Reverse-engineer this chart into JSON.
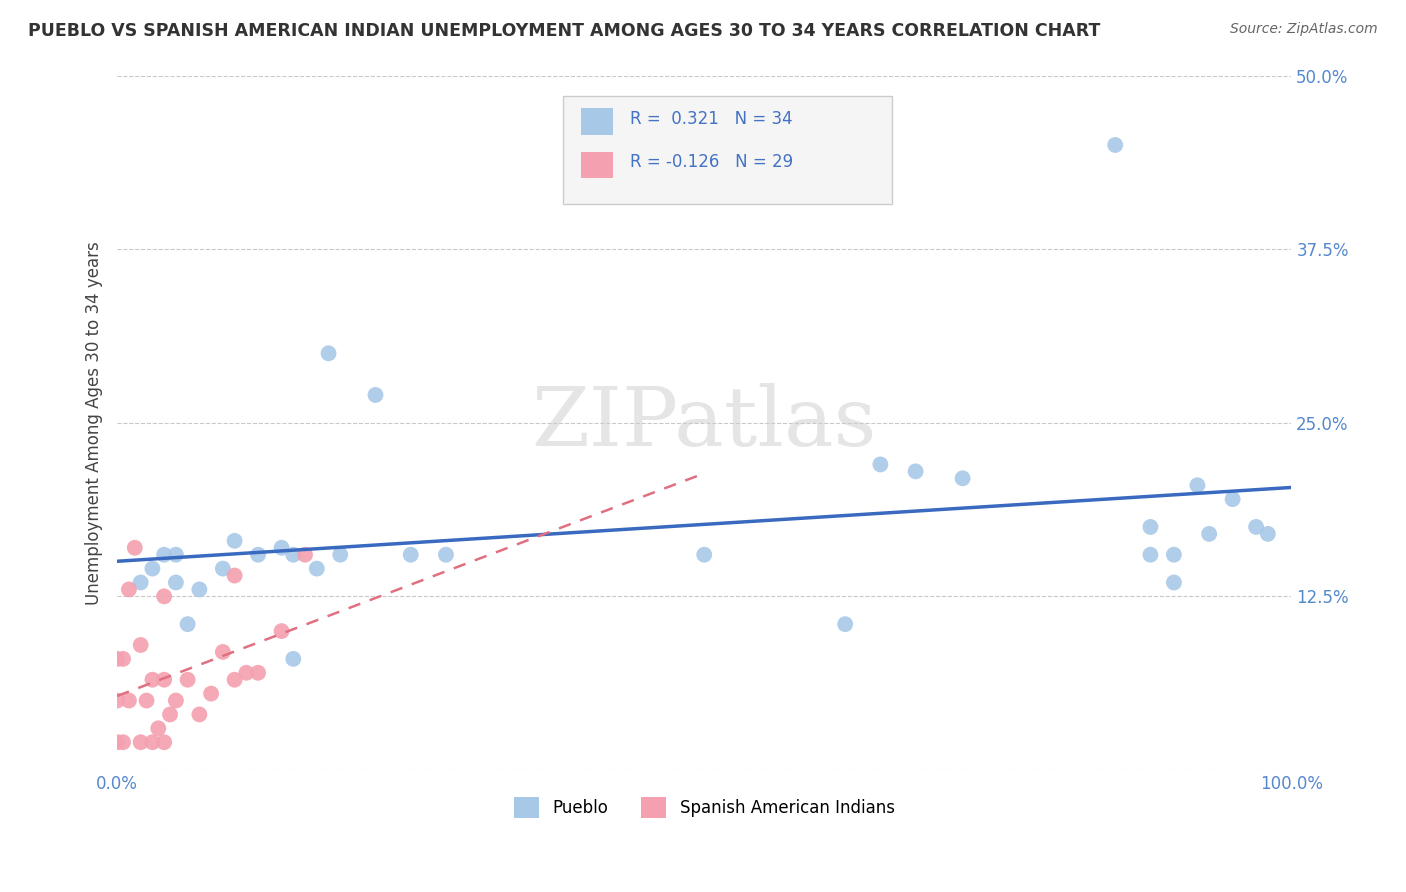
{
  "title": "PUEBLO VS SPANISH AMERICAN INDIAN UNEMPLOYMENT AMONG AGES 30 TO 34 YEARS CORRELATION CHART",
  "source": "Source: ZipAtlas.com",
  "ylabel": "Unemployment Among Ages 30 to 34 years",
  "xlim": [
    0.0,
    1.0
  ],
  "ylim": [
    0.0,
    0.5
  ],
  "xticks": [
    0.0,
    0.25,
    0.5,
    0.75,
    1.0
  ],
  "xtick_labels": [
    "0.0%",
    "",
    "",
    "",
    "100.0%"
  ],
  "yticks": [
    0.0,
    0.125,
    0.25,
    0.375,
    0.5
  ],
  "ytick_labels": [
    "",
    "12.5%",
    "25.0%",
    "37.5%",
    "50.0%"
  ],
  "pueblo_color": "#a8c8e8",
  "sai_color": "#f4a0b0",
  "pueblo_R": 0.321,
  "pueblo_N": 34,
  "sai_R": -0.126,
  "sai_N": 29,
  "pueblo_line_color": "#3a6abf",
  "sai_line_color": "#e07080",
  "watermark": "ZIPatlas",
  "pueblo_x": [
    0.02,
    0.03,
    0.04,
    0.05,
    0.05,
    0.06,
    0.07,
    0.09,
    0.1,
    0.12,
    0.14,
    0.15,
    0.15,
    0.17,
    0.18,
    0.19,
    0.22,
    0.25,
    0.28,
    0.5,
    0.62,
    0.65,
    0.68,
    0.72,
    0.85,
    0.88,
    0.88,
    0.9,
    0.9,
    0.92,
    0.93,
    0.95,
    0.97,
    0.98
  ],
  "pueblo_y": [
    0.135,
    0.145,
    0.155,
    0.135,
    0.155,
    0.105,
    0.13,
    0.145,
    0.165,
    0.155,
    0.16,
    0.08,
    0.155,
    0.145,
    0.3,
    0.155,
    0.27,
    0.155,
    0.155,
    0.155,
    0.105,
    0.22,
    0.215,
    0.21,
    0.45,
    0.155,
    0.175,
    0.135,
    0.155,
    0.205,
    0.17,
    0.195,
    0.175,
    0.17
  ],
  "sai_x": [
    0.0,
    0.0,
    0.0,
    0.005,
    0.005,
    0.01,
    0.01,
    0.015,
    0.02,
    0.02,
    0.025,
    0.03,
    0.03,
    0.035,
    0.04,
    0.04,
    0.04,
    0.045,
    0.05,
    0.06,
    0.07,
    0.08,
    0.09,
    0.1,
    0.1,
    0.11,
    0.12,
    0.14,
    0.16
  ],
  "sai_y": [
    0.02,
    0.05,
    0.08,
    0.02,
    0.08,
    0.05,
    0.13,
    0.16,
    0.02,
    0.09,
    0.05,
    0.02,
    0.065,
    0.03,
    0.02,
    0.065,
    0.125,
    0.04,
    0.05,
    0.065,
    0.04,
    0.055,
    0.085,
    0.065,
    0.14,
    0.07,
    0.07,
    0.1,
    0.155
  ],
  "background_color": "#ffffff",
  "grid_color": "#bbbbbb",
  "title_color": "#333333",
  "tick_color": "#5588cc"
}
